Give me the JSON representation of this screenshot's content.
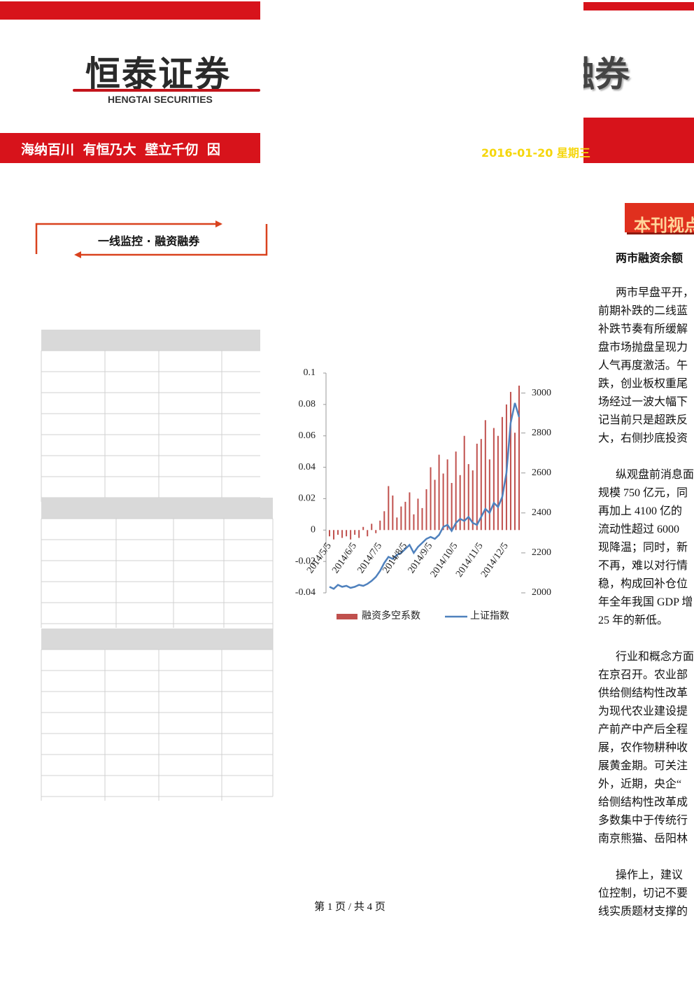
{
  "header": {
    "logo": "恒泰证券",
    "logo_en": "HENGTAI SECURITIES",
    "slogan": "海纳百川 有恒乃大 壁立千仞 因",
    "logo_right": "融券",
    "date": "2016-01-20 星期三"
  },
  "section": {
    "title": "一线监控 · 融资融券"
  },
  "sidebar": {
    "title": "本刊视点",
    "headline": "两市融资余额",
    "paragraphs": [
      [
        "两市早盘平开，",
        "前期补跌的二线蓝",
        "补跌节奏有所缓解",
        "盘市场抛盘呈现力",
        "人气再度激活。午",
        "跌，创业板权重尾",
        "场经过一波大幅下",
        "记当前只是超跌反",
        "大，右侧抄底投资"
      ],
      [
        "纵观盘前消息面",
        "规模 750 亿元，同",
        "再加上 4100 亿的",
        "流动性超过 6000",
        "现降温；同时，新",
        "不再，难以对行情",
        "稳，构成回补仓位",
        "年全年我国 GDP 增",
        "25 年的新低。"
      ],
      [
        "行业和概念方面",
        "在京召开。农业部",
        "供给侧结构性改革",
        "为现代农业建设提",
        "产前产中产后全程",
        "展，农作物耕种收",
        "展黄金期。可关注",
        "外，近期，央企“",
        "给侧结构性改革成",
        "多数集中于传统行",
        "南京熊猫、岳阳林"
      ],
      [
        "操作上，建议",
        "位控制，切记不要",
        "线实质题材支撑的"
      ]
    ]
  },
  "chart_data": {
    "type": "combo",
    "categories": [
      "2014/5/5",
      null,
      null,
      null,
      null,
      null,
      "2014/6/5",
      null,
      null,
      null,
      null,
      null,
      "2014/7/5",
      null,
      null,
      null,
      null,
      null,
      "2014/8/5",
      null,
      null,
      null,
      null,
      null,
      "2014/9/5",
      null,
      null,
      null,
      null,
      null,
      "2014/10/5",
      null,
      null,
      null,
      null,
      null,
      "2014/11/5",
      null,
      null,
      null,
      null,
      null,
      "2014/12/5",
      null,
      null,
      null
    ],
    "series": [
      {
        "name": "融资多空系数",
        "type": "bar",
        "color": "#c0504d",
        "values": [
          -0.004,
          -0.006,
          -0.003,
          -0.005,
          -0.004,
          -0.006,
          -0.003,
          -0.005,
          0.002,
          -0.004,
          0.004,
          -0.002,
          0.006,
          0.012,
          0.028,
          0.022,
          0.008,
          0.015,
          0.018,
          0.024,
          0.01,
          0.02,
          0.014,
          0.026,
          0.04,
          0.032,
          0.048,
          0.036,
          0.045,
          0.03,
          0.05,
          0.035,
          0.06,
          0.042,
          0.038,
          0.055,
          0.058,
          0.07,
          0.045,
          0.065,
          0.06,
          0.072,
          0.08,
          0.088,
          0.062,
          0.092
        ]
      },
      {
        "name": "上证指数",
        "type": "line",
        "axis": "y2",
        "color": "#4f81bd",
        "values": [
          2030,
          2020,
          2040,
          2030,
          2035,
          2025,
          2030,
          2040,
          2035,
          2045,
          2060,
          2080,
          2110,
          2150,
          2180,
          2170,
          2190,
          2200,
          2220,
          2240,
          2200,
          2230,
          2250,
          2270,
          2280,
          2270,
          2290,
          2330,
          2340,
          2310,
          2350,
          2370,
          2360,
          2380,
          2350,
          2340,
          2380,
          2420,
          2400,
          2450,
          2430,
          2480,
          2600,
          2850,
          2950,
          2880
        ]
      }
    ],
    "ylim": [
      -0.04,
      0.1
    ],
    "yticks": [
      -0.04,
      -0.02,
      0,
      0.02,
      0.04,
      0.06,
      0.08,
      0.1
    ],
    "y2lim": [
      2000,
      3100
    ],
    "y2ticks": [
      2000,
      2200,
      2400,
      2600,
      2800,
      3000
    ],
    "legend": "bottom"
  },
  "footer": {
    "page": "第 1 页 / 共 4 页"
  }
}
